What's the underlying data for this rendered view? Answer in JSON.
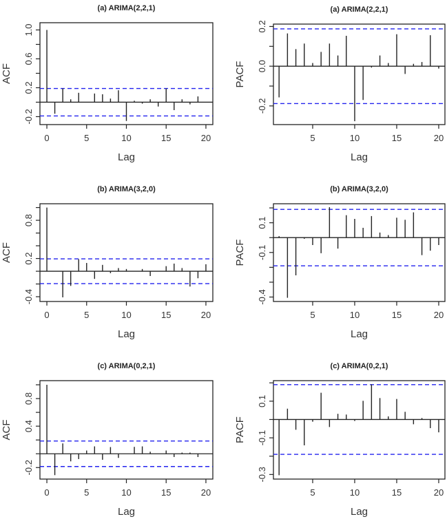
{
  "chart_data": [
    {
      "type": "bar",
      "title": "(a) ARIMA(2,2,1)",
      "xlabel": "Lag",
      "ylabel": "ACF",
      "lags": [
        0,
        1,
        2,
        3,
        4,
        5,
        6,
        7,
        8,
        9,
        10,
        11,
        12,
        13,
        14,
        15,
        16,
        17,
        18,
        19,
        20
      ],
      "values": [
        1.0,
        -0.16,
        0.19,
        0.04,
        0.13,
        0.0,
        0.12,
        0.11,
        0.05,
        0.165,
        -0.26,
        0.02,
        -0.02,
        0.04,
        -0.06,
        0.19,
        -0.11,
        0.04,
        -0.03,
        0.08,
        0.0
      ],
      "conf_limit": 0.19,
      "ylim": [
        -0.31,
        1.1
      ],
      "xlim": [
        -0.87,
        20.87
      ],
      "yticks": [
        -0.2,
        0,
        0.2,
        0.4,
        0.6,
        0.8,
        1.0
      ],
      "ytick_labels": [
        "-0.2",
        "0.2",
        "0.6",
        "1.0"
      ],
      "xtick_labels": [
        "0",
        "5",
        "10",
        "15",
        "20"
      ]
    },
    {
      "type": "bar",
      "title": "(a) ARIMA(2,2,1)",
      "xlabel": "Lag",
      "ylabel": "PACF",
      "lags": [
        1,
        2,
        3,
        4,
        5,
        6,
        7,
        8,
        9,
        10,
        11,
        12,
        13,
        14,
        15,
        16,
        17,
        18,
        19,
        20
      ],
      "values": [
        -0.157,
        0.165,
        0.086,
        0.114,
        0.016,
        0.072,
        0.114,
        0.054,
        0.153,
        -0.277,
        -0.17,
        -0.007,
        0.054,
        0.016,
        0.161,
        -0.039,
        0.012,
        0.021,
        0.156,
        -0.012
      ],
      "conf_limit": 0.188,
      "ylim": [
        -0.294,
        0.212
      ],
      "xlim": [
        0.33,
        20.74
      ],
      "yticks": [
        -0.2,
        -0.1,
        0,
        0.1,
        0.2
      ],
      "ytick_labels": [
        "-0.2",
        "0.0",
        "0.2"
      ],
      "xtick_labels": [
        "5",
        "10",
        "15",
        "20"
      ]
    },
    {
      "type": "bar",
      "title": "(b) ARIMA(3,2,0)",
      "xlabel": "Lag",
      "ylabel": "ACF",
      "lags": [
        0,
        1,
        2,
        3,
        4,
        5,
        6,
        7,
        8,
        9,
        10,
        11,
        12,
        13,
        14,
        15,
        16,
        17,
        18,
        19,
        20
      ],
      "values": [
        1.0,
        0.0,
        -0.41,
        -0.23,
        0.19,
        0.13,
        -0.12,
        0.1,
        -0.03,
        0.05,
        0.035,
        0.0,
        0.035,
        -0.075,
        0.0,
        0.08,
        0.12,
        0.05,
        -0.24,
        -0.11,
        0.11
      ],
      "conf_limit": 0.195,
      "ylim": [
        -0.475,
        1.06
      ],
      "xlim": [
        -0.87,
        20.87
      ],
      "yticks": [
        -0.4,
        -0.2,
        0,
        0.2,
        0.4,
        0.6,
        0.8,
        1.0
      ],
      "ytick_labels": [
        "-0.4",
        "0.2",
        "0.8"
      ],
      "xtick_labels": [
        "0",
        "5",
        "10",
        "15",
        "20"
      ]
    },
    {
      "type": "bar",
      "title": "(b) ARIMA(3,2,0)",
      "xlabel": "Lag",
      "ylabel": "PACF",
      "lags": [
        1,
        2,
        3,
        4,
        5,
        6,
        7,
        8,
        9,
        10,
        11,
        12,
        13,
        14,
        15,
        16,
        17,
        18,
        19,
        20
      ],
      "values": [
        0.01,
        -0.405,
        -0.254,
        -0.008,
        -0.05,
        -0.105,
        0.205,
        -0.074,
        0.151,
        0.126,
        0.066,
        0.145,
        0.034,
        0.017,
        0.134,
        0.12,
        0.17,
        -0.118,
        -0.088,
        -0.05
      ],
      "conf_limit": 0.19,
      "ylim": [
        -0.43,
        0.228
      ],
      "xlim": [
        0.33,
        20.74
      ],
      "yticks": [
        -0.4,
        -0.3,
        -0.2,
        -0.1,
        0,
        0.1,
        0.2
      ],
      "ytick_labels": [
        "-0.4",
        "-0.1",
        "0.1"
      ],
      "xtick_labels": [
        "5",
        "10",
        "15",
        "20"
      ]
    },
    {
      "type": "bar",
      "title": "(c) ARIMA(0,2,1)",
      "xlabel": "Lag",
      "ylabel": "ACF",
      "lags": [
        0,
        1,
        2,
        3,
        4,
        5,
        6,
        7,
        8,
        9,
        10,
        11,
        12,
        13,
        14,
        15,
        16,
        17,
        18,
        19,
        20
      ],
      "values": [
        1.0,
        -0.31,
        0.15,
        -0.11,
        -0.077,
        0.047,
        0.107,
        -0.087,
        0.097,
        -0.06,
        0.0,
        0.1,
        0.107,
        0.03,
        0.0,
        0.047,
        -0.047,
        0.017,
        0.017,
        -0.047,
        0.0
      ],
      "conf_limit": 0.185,
      "ylim": [
        -0.367,
        1.06
      ],
      "xlim": [
        -0.87,
        20.87
      ],
      "yticks": [
        -0.2,
        0,
        0.2,
        0.4,
        0.6,
        0.8,
        1.0
      ],
      "ytick_labels": [
        "-0.2",
        "0.4",
        "0.8"
      ],
      "xtick_labels": [
        "0",
        "5",
        "10",
        "15",
        "20"
      ]
    },
    {
      "type": "bar",
      "title": "(c) ARIMA(0,2,1)",
      "xlabel": "Lag",
      "ylabel": "PACF",
      "lags": [
        1,
        2,
        3,
        4,
        5,
        6,
        7,
        8,
        9,
        10,
        11,
        12,
        13,
        14,
        15,
        16,
        17,
        18,
        19,
        20
      ],
      "values": [
        -0.304,
        0.059,
        -0.056,
        -0.141,
        -0.012,
        0.146,
        -0.041,
        0.031,
        0.027,
        -0.008,
        0.102,
        0.192,
        0.117,
        0.017,
        0.112,
        0.042,
        -0.026,
        0.008,
        -0.047,
        -0.07
      ],
      "conf_limit": 0.19,
      "ylim": [
        -0.325,
        0.212
      ],
      "xlim": [
        0.33,
        20.74
      ],
      "yticks": [
        -0.3,
        -0.2,
        -0.1,
        0,
        0.1,
        0.2
      ],
      "ytick_labels": [
        "-0.3",
        "-0.1",
        "0.1"
      ],
      "xtick_labels": [
        "5",
        "10",
        "15",
        "20"
      ]
    }
  ],
  "colors": {
    "conf_line": "#2222ee",
    "spike": "#222222",
    "axis": "#222222"
  }
}
